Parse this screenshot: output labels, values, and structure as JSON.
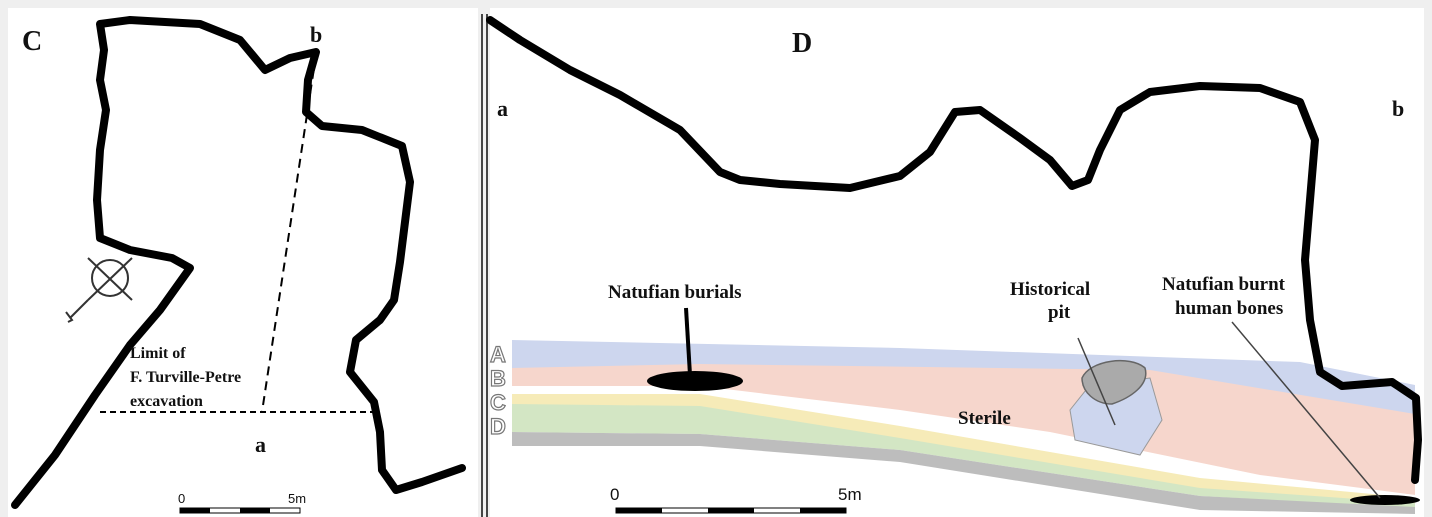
{
  "panels": [
    {
      "label": "C",
      "point_b": "b",
      "point_a": "a",
      "annotation": [
        "Limit of",
        "F. Turville-Petre",
        "excavation"
      ],
      "scale": {
        "start": "0",
        "end": "5m"
      }
    },
    {
      "label": "D",
      "end_a": "a",
      "end_b": "b",
      "annotations": {
        "burials": "Natufian burials",
        "pit": [
          "Historical",
          "pit"
        ],
        "bones": [
          "Natufian burnt",
          "human bones"
        ],
        "sterile": "Sterile"
      },
      "layers": [
        "A",
        "B",
        "C",
        "D"
      ],
      "scale": {
        "start": "0",
        "end": "5m"
      }
    }
  ]
}
